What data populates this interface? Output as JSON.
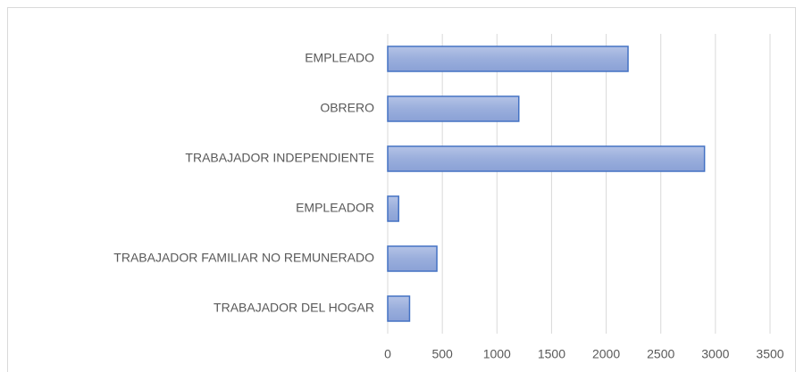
{
  "chart_data": {
    "type": "bar",
    "orientation": "horizontal",
    "categories": [
      "EMPLEADO",
      "OBRERO",
      "TRABAJADOR INDEPENDIENTE",
      "EMPLEADOR",
      "TRABAJADOR FAMILIAR NO REMUNERADO",
      "TRABAJADOR DEL HOGAR"
    ],
    "values": [
      2200,
      1200,
      2900,
      100,
      450,
      200
    ],
    "color": "#4472c4",
    "xlim": [
      0,
      3500
    ],
    "xticks": [
      0,
      500,
      1000,
      1500,
      2000,
      2500,
      3000,
      3500
    ],
    "grid": true
  }
}
